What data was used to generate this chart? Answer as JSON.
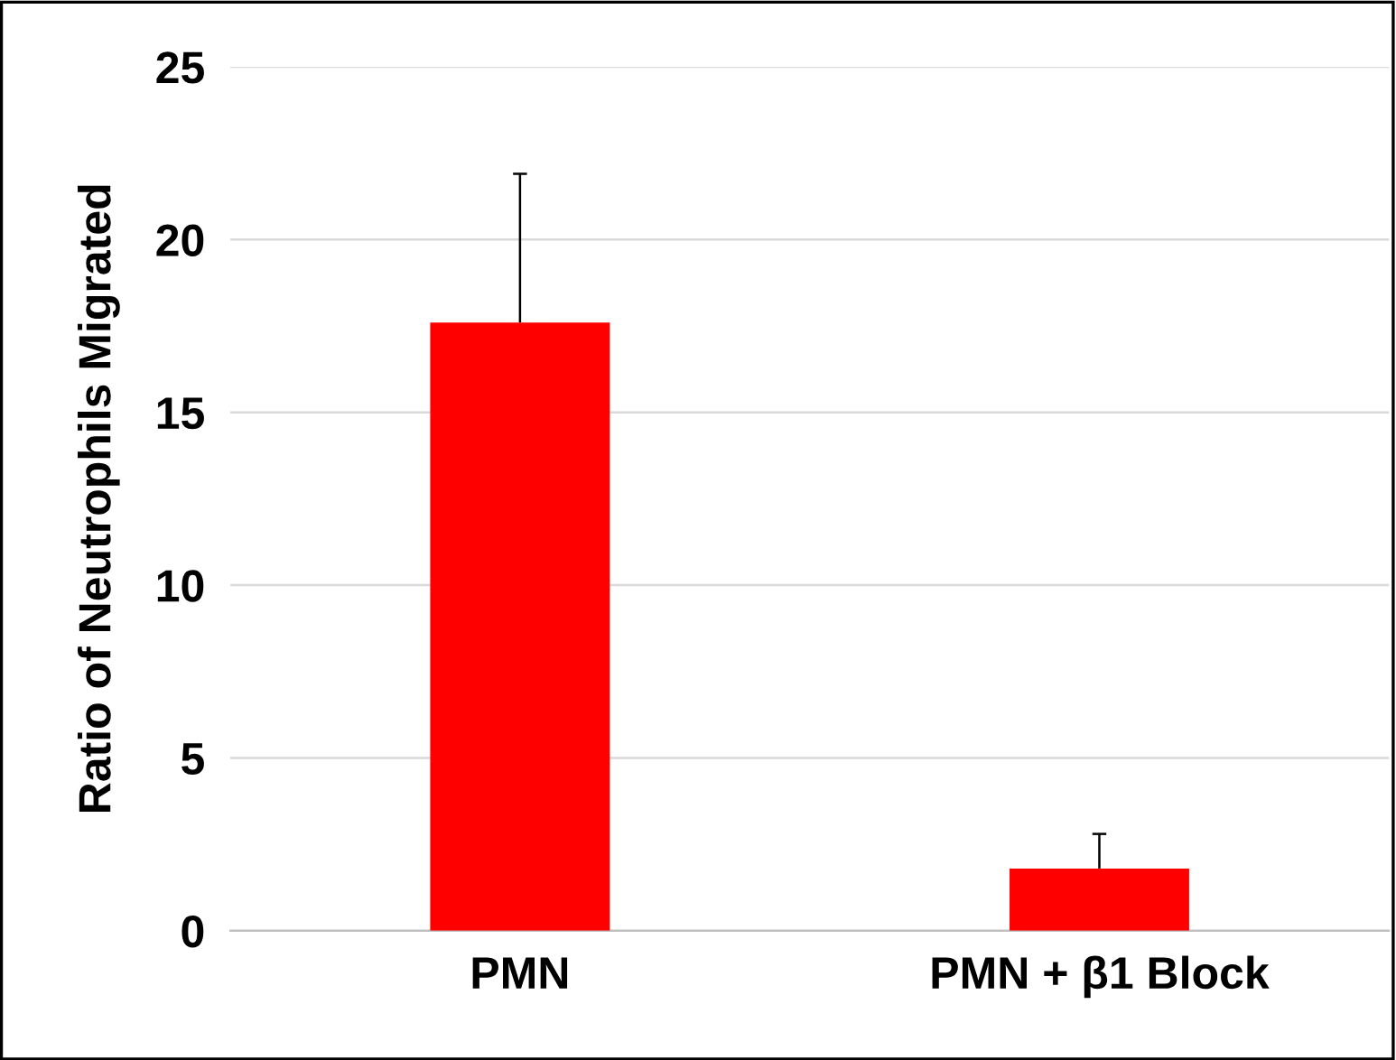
{
  "chart_data": {
    "type": "bar",
    "ylabel": "Ratio of Neutrophils Migrated",
    "categories": [
      "PMN",
      "PMN + β1 Block"
    ],
    "values": [
      17.6,
      1.8
    ],
    "errors": [
      [
        17.6,
        21.9
      ],
      [
        1.8,
        2.8
      ]
    ],
    "color": "#ff0000",
    "ylim": [
      0,
      25
    ],
    "yticks": [
      0,
      5,
      10,
      15,
      20,
      25
    ],
    "grid": "y",
    "legend": false
  }
}
